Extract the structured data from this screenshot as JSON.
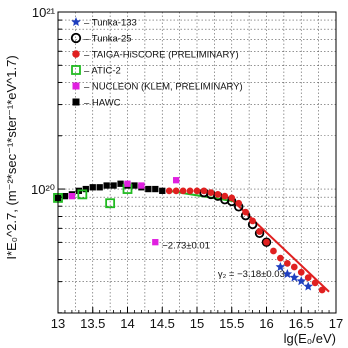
{
  "chart_data": {
    "type": "scatter",
    "title": "",
    "xlabel": "lg(E₀/eV)",
    "ylabel": "I*E₀^2.7, (m⁻²*sec⁻¹*ster⁻¹*eV^1.7)",
    "xlim": [
      13,
      17
    ],
    "ylim_log10": [
      19.3,
      21
    ],
    "log_y": true,
    "grid": true,
    "x_ticks": [
      "13",
      "13.5",
      "14",
      "14.5",
      "15",
      "15.5",
      "16",
      "16.5",
      "17"
    ],
    "y_ticks": [
      {
        "label": "10²⁰",
        "value": 20
      },
      {
        "label": "10²¹",
        "value": 21
      }
    ],
    "legend_position": "top-left",
    "series": [
      {
        "name": "Tunka-133",
        "marker": "star",
        "color": "#1f3fbf",
        "points": [
          [
            16.2,
            19.56
          ],
          [
            16.3,
            19.52
          ],
          [
            16.4,
            19.5
          ],
          [
            16.5,
            19.48
          ],
          [
            16.6,
            19.45
          ]
        ]
      },
      {
        "name": "Tunka-25",
        "marker": "open-circle",
        "color": "#000000",
        "points": [
          [
            15.1,
            19.98
          ],
          [
            15.2,
            19.97
          ],
          [
            15.3,
            19.96
          ],
          [
            15.4,
            19.94
          ],
          [
            15.5,
            19.93
          ],
          [
            15.6,
            19.9
          ],
          [
            15.7,
            19.85
          ],
          [
            15.8,
            19.8
          ],
          [
            15.9,
            19.75
          ],
          [
            16.0,
            19.7
          ]
        ]
      },
      {
        "name": "TAIGA-HiSCORE (PRELIMINARY)",
        "marker": "filled-circle",
        "color": "#e02020",
        "points": [
          [
            14.6,
            19.99
          ],
          [
            14.7,
            19.99
          ],
          [
            14.8,
            19.99
          ],
          [
            14.9,
            19.99
          ],
          [
            15.0,
            19.99
          ],
          [
            15.1,
            19.99
          ],
          [
            15.2,
            19.98
          ],
          [
            15.3,
            19.97
          ],
          [
            15.4,
            19.96
          ],
          [
            15.5,
            19.95
          ],
          [
            15.6,
            19.92
          ],
          [
            15.7,
            19.87
          ],
          [
            15.8,
            19.82
          ],
          [
            15.9,
            19.76
          ],
          [
            16.0,
            19.7
          ],
          [
            16.1,
            19.65
          ],
          [
            16.2,
            19.61
          ],
          [
            16.3,
            19.58
          ],
          [
            16.4,
            19.56
          ],
          [
            16.5,
            19.53
          ],
          [
            16.6,
            19.5
          ],
          [
            16.7,
            19.47
          ],
          [
            16.8,
            19.43
          ]
        ]
      },
      {
        "name": "ATIC-2",
        "marker": "open-square",
        "color": "#22bb22",
        "points": [
          [
            13.0,
            19.95
          ],
          [
            13.35,
            19.97
          ],
          [
            13.75,
            19.92
          ],
          [
            14.0,
            20.0
          ]
        ]
      },
      {
        "name": "NUCLEON (KLEM, PRELIMINARY)",
        "marker": "filled-square",
        "color": "#e020e0",
        "points": [
          [
            13.2,
            19.96
          ],
          [
            14.0,
            20.03
          ],
          [
            14.2,
            20.02
          ],
          [
            14.4,
            19.7
          ],
          [
            14.7,
            20.05
          ]
        ]
      },
      {
        "name": "HAWC",
        "marker": "filled-square",
        "color": "#000000",
        "points": [
          [
            13.0,
            19.95
          ],
          [
            13.1,
            19.96
          ],
          [
            13.2,
            19.97
          ],
          [
            13.3,
            19.99
          ],
          [
            13.4,
            20.0
          ],
          [
            13.5,
            20.01
          ],
          [
            13.6,
            20.01
          ],
          [
            13.7,
            20.02
          ],
          [
            13.8,
            20.02
          ],
          [
            13.9,
            20.03
          ],
          [
            14.0,
            20.02
          ],
          [
            14.1,
            20.02
          ],
          [
            14.2,
            20.01
          ],
          [
            14.3,
            20.0
          ],
          [
            14.4,
            20.0
          ],
          [
            14.5,
            19.99
          ]
        ]
      }
    ],
    "fit_lines": [
      {
        "color": "#22bb22",
        "from": [
          14.6,
          19.99
        ],
        "to": [
          15.55,
          19.93
        ]
      },
      {
        "color": "#e02020",
        "from": [
          15.5,
          19.94
        ],
        "to": [
          16.9,
          19.42
        ]
      }
    ],
    "annotations": [
      "−2.73±0.01",
      "γ₂ = −3.18±0.03"
    ]
  }
}
